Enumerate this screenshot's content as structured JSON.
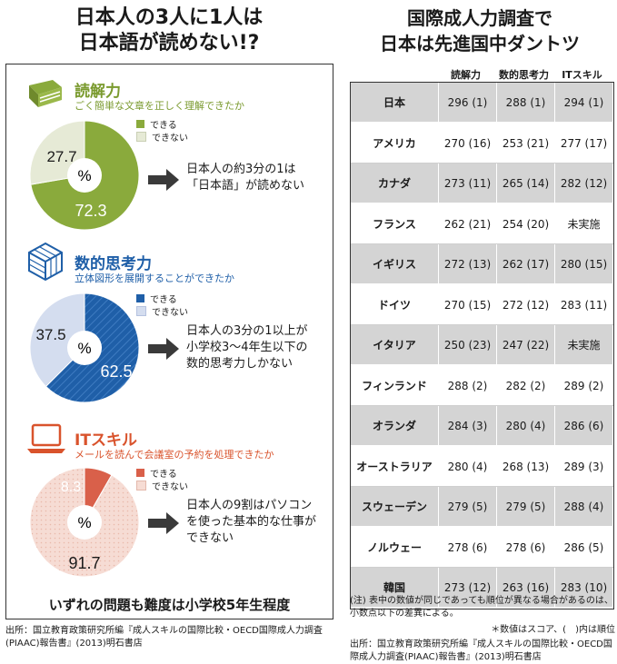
{
  "left": {
    "title_line1": "日本人の3人に1人は",
    "title_line2": "日本語が読めない!?",
    "sections": [
      {
        "title": "読解力",
        "subtitle": "ごく簡単な文章を正しく理解できたか",
        "legend_yes": "できる",
        "legend_no": "できない",
        "center": "%",
        "yes_label": "72.3",
        "no_label": "27.7",
        "note_lines": [
          "日本人の約3分の1は",
          "「日本語」が読めない"
        ],
        "color_yes": "#8aaa3c",
        "color_no": "#e6ead6",
        "icon": "book-icon"
      },
      {
        "title": "数的思考力",
        "subtitle": "立体図形を展開することができたか",
        "legend_yes": "できる",
        "legend_no": "できない",
        "center": "%",
        "yes_label": "62.5",
        "no_label": "37.5",
        "note_lines": [
          "日本人の3分の1以上が",
          "小学校3～4年生以下の",
          "数的思考力しかない"
        ],
        "color_yes": "#1f5fa8",
        "color_no": "#d4ddef",
        "icon": "cube-icon"
      },
      {
        "title": "ITスキル",
        "subtitle": "メールを読んで会議室の予約を処理できたか",
        "legend_yes": "できる",
        "legend_no": "できない",
        "center": "%",
        "yes_label": "8.3",
        "no_label": "91.7",
        "note_lines": [
          "日本人の9割はパソコン",
          "を使った基本的な仕事が",
          "できない"
        ],
        "color_yes": "#d9604a",
        "color_no": "#f6dcd4",
        "icon": "laptop-icon"
      }
    ],
    "bottom_text": "いずれの問題も難度は小学校5年生程度",
    "source": "出所：国立教育政策研究所編『成人スキルの国際比較・OECD国際成人力調査(PIAAC)報告書』(2013)明石書店"
  },
  "right": {
    "title_line1": "国際成人力調査で",
    "title_line2": "日本は先進国中ダントツ",
    "headers": [
      "読解力",
      "数的思考力",
      "ITスキル"
    ],
    "note1": "(注) 表中の数値が同じであっても順位が異なる場合があるのは、小数点以下の差異による。",
    "note2": "＊数値はスコア、(　)内は順位",
    "source": "出所：国立教育政策研究所編『成人スキルの国際比較・OECD国際成人力調査(PIAAC)報告書』(2013)明石書店"
  },
  "chart_data": [
    {
      "type": "pie",
      "title": "読解力",
      "categories": [
        "できる",
        "できない"
      ],
      "values": [
        72.3,
        27.7
      ]
    },
    {
      "type": "pie",
      "title": "数的思考力",
      "categories": [
        "できる",
        "できない"
      ],
      "values": [
        62.5,
        37.5
      ]
    },
    {
      "type": "pie",
      "title": "ITスキル",
      "categories": [
        "できる",
        "できない"
      ],
      "values": [
        8.3,
        91.7
      ]
    },
    {
      "type": "table",
      "title": "国際成人力調査で日本は先進国中ダントツ",
      "columns": [
        "読解力",
        "数的思考力",
        "ITスキル"
      ],
      "rows": [
        {
          "country": "日本",
          "cells": [
            "296 (1)",
            "288 (1)",
            "294 (1)"
          ]
        },
        {
          "country": "アメリカ",
          "cells": [
            "270 (16)",
            "253 (21)",
            "277 (17)"
          ]
        },
        {
          "country": "カナダ",
          "cells": [
            "273 (11)",
            "265 (14)",
            "282 (12)"
          ]
        },
        {
          "country": "フランス",
          "cells": [
            "262 (21)",
            "254 (20)",
            "未実施"
          ]
        },
        {
          "country": "イギリス",
          "cells": [
            "272 (13)",
            "262 (17)",
            "280 (15)"
          ]
        },
        {
          "country": "ドイツ",
          "cells": [
            "270 (15)",
            "272 (12)",
            "283 (11)"
          ]
        },
        {
          "country": "イタリア",
          "cells": [
            "250 (23)",
            "247 (22)",
            "未実施"
          ]
        },
        {
          "country": "フィンランド",
          "cells": [
            "288 (2)",
            "282 (2)",
            "289 (2)"
          ]
        },
        {
          "country": "オランダ",
          "cells": [
            "284 (3)",
            "280 (4)",
            "286 (6)"
          ]
        },
        {
          "country": "オーストラリア",
          "cells": [
            "280 (4)",
            "268 (13)",
            "289 (3)"
          ]
        },
        {
          "country": "スウェーデン",
          "cells": [
            "279 (5)",
            "279 (5)",
            "288 (4)"
          ]
        },
        {
          "country": "ノルウェー",
          "cells": [
            "278 (6)",
            "278 (6)",
            "286 (5)"
          ]
        },
        {
          "country": "韓国",
          "cells": [
            "273 (12)",
            "263 (16)",
            "283 (10)"
          ]
        }
      ]
    }
  ]
}
